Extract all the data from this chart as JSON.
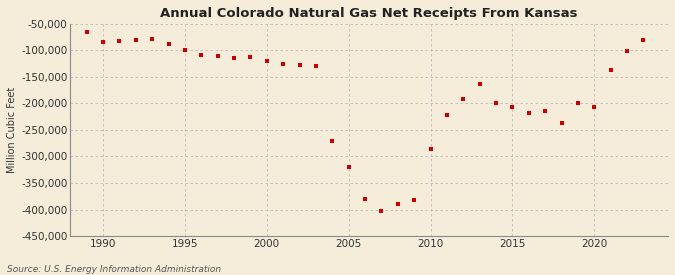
{
  "title": "Annual Colorado Natural Gas Net Receipts From Kansas",
  "ylabel": "Million Cubic Feet",
  "source": "Source: U.S. Energy Information Administration",
  "background_color": "#f5edda",
  "plot_background_color": "#f5edda",
  "grid_color": "#bbbbbb",
  "marker_color": "#cc0000",
  "years": [
    1989,
    1990,
    1991,
    1992,
    1993,
    1994,
    1995,
    1996,
    1997,
    1998,
    1999,
    2000,
    2001,
    2002,
    2003,
    2004,
    2005,
    2006,
    2007,
    2008,
    2009,
    2010,
    2011,
    2012,
    2013,
    2014,
    2015,
    2016,
    2017,
    2018,
    2019,
    2020,
    2021,
    2022,
    2023
  ],
  "values": [
    -65000,
    -85000,
    -83000,
    -80000,
    -78000,
    -87000,
    -100000,
    -108000,
    -110000,
    -115000,
    -113000,
    -120000,
    -125000,
    -128000,
    -130000,
    -270000,
    -320000,
    -380000,
    -403000,
    -390000,
    -382000,
    -285000,
    -222000,
    -192000,
    -163000,
    -200000,
    -207000,
    -218000,
    -215000,
    -237000,
    -200000,
    -207000,
    -137000,
    -102000,
    -80000
  ],
  "ylim": [
    -450000,
    -50000
  ],
  "yticks": [
    -50000,
    -100000,
    -150000,
    -200000,
    -250000,
    -300000,
    -350000,
    -400000,
    -450000
  ],
  "xlim": [
    1988.0,
    2024.5
  ],
  "xticks": [
    1990,
    1995,
    2000,
    2005,
    2010,
    2015,
    2020
  ]
}
